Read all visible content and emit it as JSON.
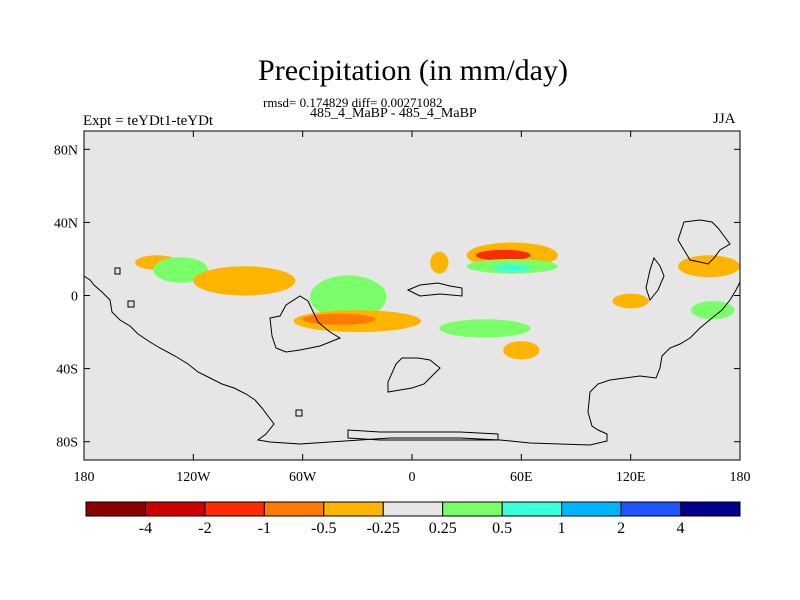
{
  "chart_data": {
    "type": "contour map",
    "title": "Precipitation (in mm/day)",
    "subtitle": "rmsd= 0.174829 diff= 0.00271082",
    "center_label": "485_4_MaBP - 485_4_MaBP",
    "left_label": "Expt = teYDt1-teYDt",
    "right_label": "JJA",
    "xlabel": "",
    "ylabel": "",
    "x_ticks": [
      "180",
      "120W",
      "60W",
      "0",
      "60E",
      "120E",
      "180"
    ],
    "x_values": [
      -180,
      -120,
      -60,
      0,
      60,
      120,
      180
    ],
    "y_ticks": [
      "80N",
      "40N",
      "0",
      "40S",
      "80S"
    ],
    "y_values": [
      80,
      40,
      0,
      -40,
      -80
    ],
    "xlim": [
      -180,
      180
    ],
    "ylim": [
      -90,
      90
    ],
    "colorbar": {
      "labels": [
        "-4",
        "-2",
        "-1",
        "-0.5",
        "-0.25",
        "0.25",
        "0.5",
        "1",
        "2",
        "4"
      ],
      "colors": [
        "#8b0000",
        "#cd0000",
        "#ff2a00",
        "#ff7a00",
        "#ffb400",
        "#e6e6e6",
        "#7aff6a",
        "#3affd7",
        "#00b4ff",
        "#1e55ff",
        "#00008b"
      ]
    },
    "anomaly_regions": [
      {
        "name": "west-pacific-north",
        "category": "-0.5",
        "color": "#ffb400",
        "center": [
          -140,
          18
        ],
        "extent": [
          12,
          4
        ]
      },
      {
        "name": "central-pacific-wet",
        "category": "1",
        "color": "#3affd7",
        "center": [
          -125,
          14
        ],
        "extent": [
          10,
          5
        ]
      },
      {
        "name": "central-pacific-wet-edge",
        "category": "0.5",
        "color": "#7aff6a",
        "center": [
          -127,
          14
        ],
        "extent": [
          15,
          7
        ]
      },
      {
        "name": "east-pacific-dry",
        "category": "-1",
        "color": "#ff7a00",
        "center": [
          -95,
          8
        ],
        "extent": [
          20,
          5
        ]
      },
      {
        "name": "east-pacific-dry-edge",
        "category": "-0.5",
        "color": "#ffb400",
        "center": [
          -92,
          8
        ],
        "extent": [
          28,
          8
        ]
      },
      {
        "name": "atlantic-wet-core",
        "category": "1",
        "color": "#3affd7",
        "center": [
          -35,
          -1
        ],
        "extent": [
          15,
          8
        ]
      },
      {
        "name": "atlantic-wet-edge",
        "category": "0.5",
        "color": "#7aff6a",
        "center": [
          -35,
          -1
        ],
        "extent": [
          21,
          12
        ]
      },
      {
        "name": "south-atlantic-dry",
        "category": "-0.5",
        "color": "#ffb400",
        "center": [
          -30,
          -14
        ],
        "extent": [
          35,
          6
        ]
      },
      {
        "name": "south-atlantic-dry-core",
        "category": "-1",
        "color": "#ff7a00",
        "center": [
          -40,
          -13
        ],
        "extent": [
          20,
          3
        ]
      },
      {
        "name": "west-africa-dry",
        "category": "-0.5",
        "color": "#ffb400",
        "center": [
          15,
          18
        ],
        "extent": [
          5,
          6
        ]
      },
      {
        "name": "indian-ocean-dry",
        "category": "-0.5",
        "color": "#ffb400",
        "center": [
          55,
          22
        ],
        "extent": [
          25,
          7
        ]
      },
      {
        "name": "indian-ocean-dry-core",
        "category": "-2",
        "color": "#ff2a00",
        "center": [
          50,
          22
        ],
        "extent": [
          15,
          3
        ]
      },
      {
        "name": "indian-ocean-wet",
        "category": "0.5",
        "color": "#7aff6a",
        "center": [
          55,
          16
        ],
        "extent": [
          25,
          4
        ]
      },
      {
        "name": "indian-ocean-wet-core",
        "category": "1",
        "color": "#3affd7",
        "center": [
          55,
          15
        ],
        "extent": [
          10,
          2
        ]
      },
      {
        "name": "south-indian-wet",
        "category": "0.5",
        "color": "#7aff6a",
        "center": [
          40,
          -18
        ],
        "extent": [
          25,
          5
        ]
      },
      {
        "name": "south-indian-dry",
        "category": "-0.5",
        "color": "#ffb400",
        "center": [
          60,
          -30
        ],
        "extent": [
          10,
          5
        ]
      },
      {
        "name": "west-pacific-dry",
        "category": "-0.5",
        "color": "#ffb400",
        "center": [
          120,
          -3
        ],
        "extent": [
          10,
          4
        ]
      },
      {
        "name": "west-pacific-dry-core",
        "category": "-1",
        "color": "#ff7a00",
        "center": [
          163,
          16
        ],
        "extent": [
          12,
          4
        ]
      },
      {
        "name": "west-pacific-dry-outer",
        "category": "-0.5",
        "color": "#ffb400",
        "center": [
          163,
          16
        ],
        "extent": [
          17,
          6
        ]
      },
      {
        "name": "southwest-pacific-wet",
        "category": "0.5",
        "color": "#7aff6a",
        "center": [
          165,
          -8
        ],
        "extent": [
          12,
          5
        ]
      }
    ]
  }
}
